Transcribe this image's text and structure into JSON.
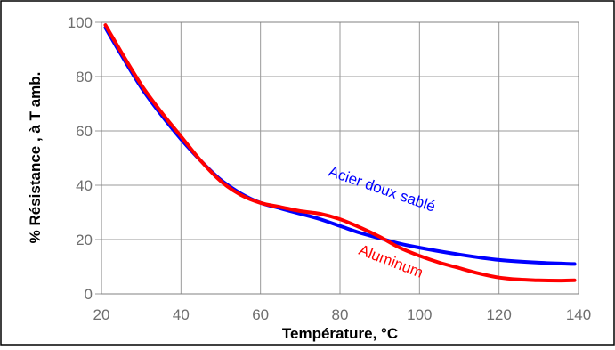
{
  "chart_data": {
    "type": "line",
    "title": "",
    "xlabel": "Température, °C",
    "ylabel": "% Résistance , à T amb.",
    "xlim": [
      20,
      140
    ],
    "ylim": [
      0,
      100
    ],
    "x_ticks": [
      20,
      40,
      60,
      80,
      100,
      120,
      140
    ],
    "y_ticks": [
      0,
      20,
      40,
      60,
      80,
      100
    ],
    "grid": true,
    "legend": "inline labels",
    "series": [
      {
        "name": "Acier doux sablé",
        "color": "#0000ff",
        "x": [
          21,
          25,
          30,
          35,
          40,
          45,
          50,
          55,
          60,
          65,
          70,
          75,
          80,
          85,
          90,
          95,
          100,
          110,
          120,
          130,
          139
        ],
        "y": [
          98,
          88,
          76,
          66,
          57,
          49,
          42,
          37,
          33.5,
          31.5,
          29.5,
          27.5,
          25,
          22.5,
          20.5,
          18.5,
          17,
          14.5,
          12.5,
          11.5,
          11
        ]
      },
      {
        "name": "Aluminum",
        "color": "#ff0000",
        "x": [
          21,
          25,
          30,
          35,
          40,
          45,
          50,
          55,
          60,
          65,
          70,
          75,
          80,
          85,
          90,
          95,
          100,
          105,
          110,
          115,
          120,
          125,
          130,
          135,
          139
        ],
        "y": [
          99,
          89,
          77,
          67,
          58,
          49,
          41.5,
          36.5,
          33.5,
          32,
          30.5,
          29.5,
          27.5,
          24.5,
          21,
          17,
          14,
          11.5,
          9.5,
          7.5,
          6,
          5.3,
          5,
          4.9,
          5
        ]
      }
    ]
  }
}
